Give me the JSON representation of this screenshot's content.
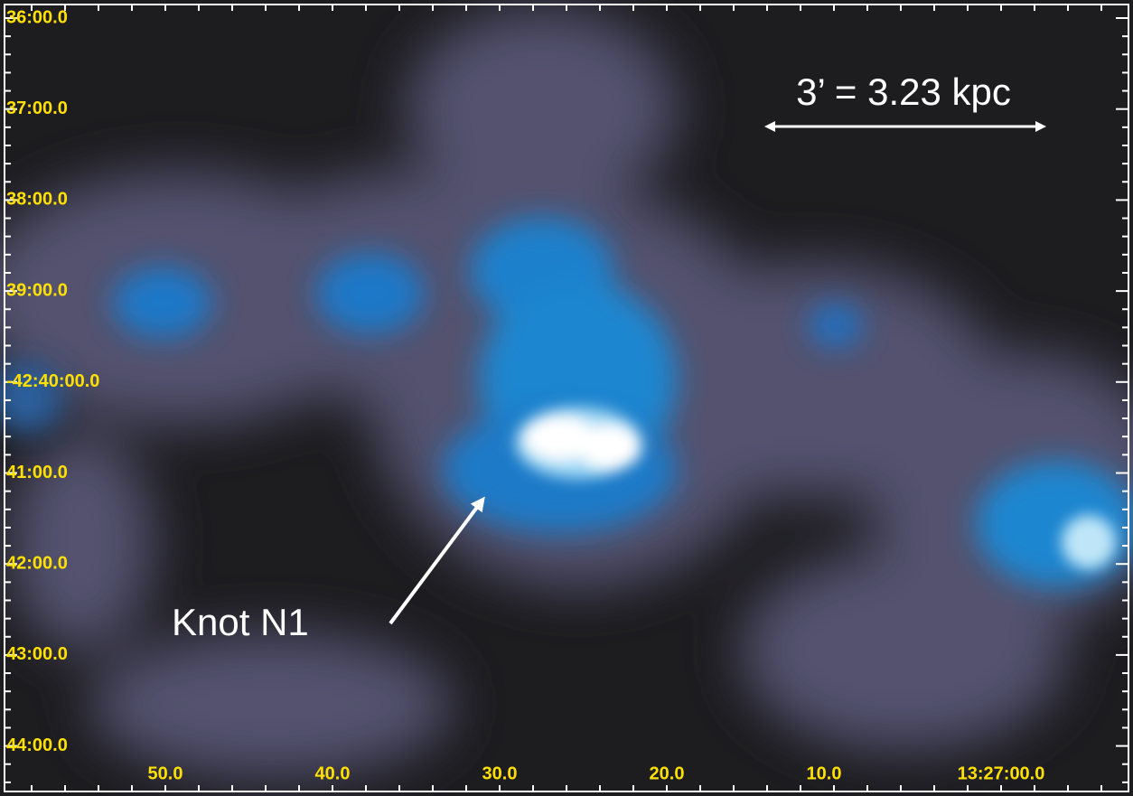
{
  "image": {
    "y_axis": {
      "labels": [
        "36:00.0",
        "37:00.0",
        "38:00.0",
        "39:00.0",
        "-42:40:00.0",
        "41:00.0",
        "42:00.0",
        "43:00.0",
        "44:00.0"
      ]
    },
    "x_axis": {
      "labels": [
        "50.0",
        "40.0",
        "30.0",
        "20.0",
        "10.0",
        "13:27:00.0"
      ]
    },
    "annotations": {
      "scale_bar": "3’ = 3.23 kpc",
      "knot": "Knot N1"
    }
  }
}
